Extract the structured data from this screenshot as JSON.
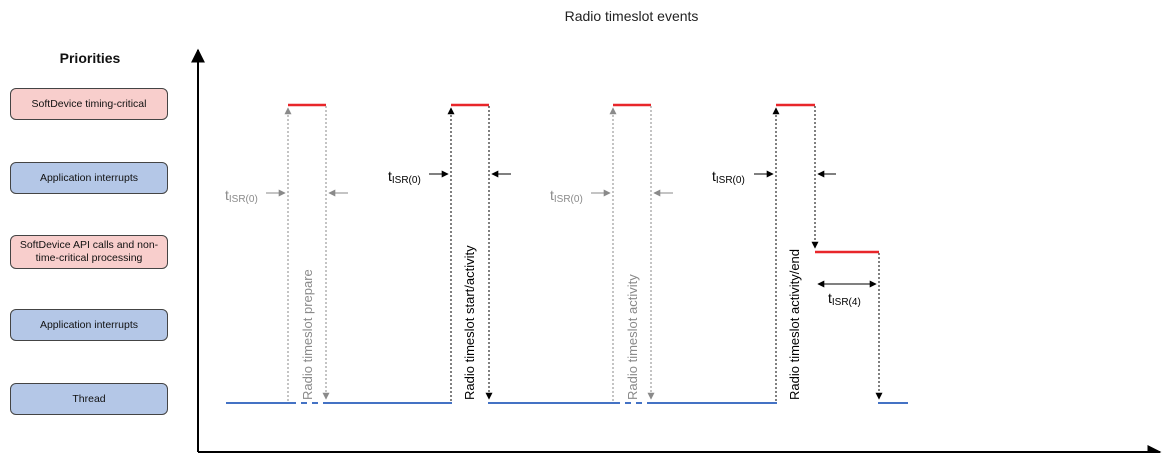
{
  "title": "Radio timeslot events",
  "priorities": {
    "header": "Priorities",
    "levels": [
      {
        "label": "SoftDevice timing-critical",
        "color": "#f8cecc"
      },
      {
        "label": "Application interrupts",
        "color": "#b4c7e7"
      },
      {
        "label": "SoftDevice API calls and non-time-critical processing",
        "color": "#f8cecc"
      },
      {
        "label": "Application interrupts",
        "color": "#b4c7e7"
      },
      {
        "label": "Thread",
        "color": "#b4c7e7"
      }
    ]
  },
  "events": [
    {
      "label": "Radio timeslot prepare",
      "style": "gray",
      "timing": "t",
      "timing_sub": "ISR(0)"
    },
    {
      "label": "Radio timeslot start/activity",
      "style": "black",
      "timing": "t",
      "timing_sub": "ISR(0)"
    },
    {
      "label": "Radio timeslot activity",
      "style": "gray",
      "timing": "t",
      "timing_sub": "ISR(0)"
    },
    {
      "label": "Radio timeslot activity/end",
      "style": "black",
      "timing": "t",
      "timing_sub": "ISR(0)"
    }
  ],
  "extra_timing": {
    "timing": "t",
    "timing_sub": "ISR(4)"
  },
  "colors": {
    "red": "#e8262a",
    "blue": "#4472c4",
    "gray": "#8a8a8a",
    "black": "#000000"
  }
}
